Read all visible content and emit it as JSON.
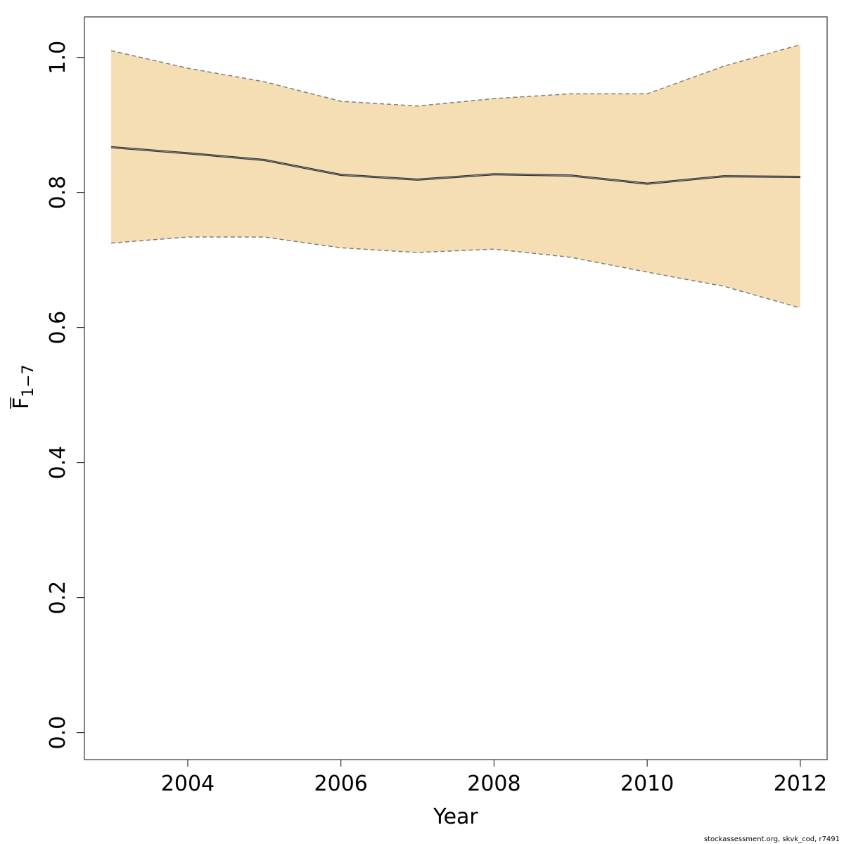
{
  "chart_data": {
    "type": "line",
    "xlabel": "Year",
    "ylabel": "F",
    "ylabel_subscript": "1−7",
    "xlim": [
      2002.65,
      2012.35
    ],
    "ylim": [
      -0.04,
      1.06
    ],
    "xticks": [
      2004,
      2006,
      2008,
      2010,
      2012
    ],
    "yticks": [
      0.0,
      0.2,
      0.4,
      0.6,
      0.8,
      1.0
    ],
    "xtick_labels": [
      "2004",
      "2006",
      "2008",
      "2010",
      "2012"
    ],
    "ytick_labels": [
      "0.0",
      "0.2",
      "0.4",
      "0.6",
      "0.8",
      "1.0"
    ],
    "grid": false,
    "x": [
      2003,
      2004,
      2005,
      2006,
      2007,
      2008,
      2009,
      2010,
      2011,
      2012
    ],
    "series": [
      {
        "role": "estimate",
        "values": [
          0.867,
          0.858,
          0.848,
          0.826,
          0.819,
          0.827,
          0.825,
          0.813,
          0.824,
          0.823
        ]
      },
      {
        "role": "upper",
        "values": [
          1.01,
          0.984,
          0.964,
          0.935,
          0.928,
          0.939,
          0.946,
          0.946,
          0.987,
          1.019
        ]
      },
      {
        "role": "lower",
        "values": [
          0.725,
          0.734,
          0.734,
          0.718,
          0.711,
          0.716,
          0.704,
          0.682,
          0.661,
          0.629
        ]
      }
    ],
    "colors": {
      "band": "#f5deb3",
      "line": "#333333",
      "bound": "#7f7f7f",
      "axis": "#333333"
    }
  },
  "footer": {
    "caption": "stockassessment.org, skvk_cod, r7491"
  }
}
